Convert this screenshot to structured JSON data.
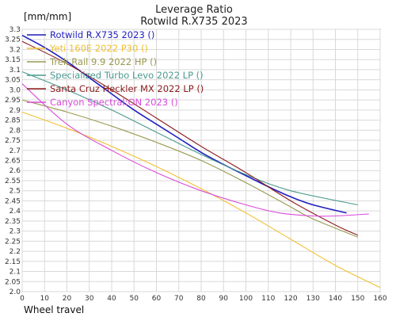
{
  "chart_data": {
    "type": "line",
    "title": "Leverage Ratio",
    "subtitle": "Rotwild R.X735 2023",
    "ylabel": "[mm/mm]",
    "xlabel": "Wheel travel",
    "xlim": [
      0,
      160
    ],
    "ylim": [
      2.0,
      3.3
    ],
    "x_ticks": [
      0,
      10,
      20,
      30,
      40,
      50,
      60,
      70,
      80,
      90,
      100,
      110,
      120,
      130,
      140,
      150,
      160
    ],
    "y_ticks": [
      2.0,
      2.05,
      2.1,
      2.15,
      2.2,
      2.25,
      2.3,
      2.35,
      2.4,
      2.45,
      2.5,
      2.55,
      2.6,
      2.65,
      2.7,
      2.75,
      2.8,
      2.85,
      2.9,
      2.95,
      3.0,
      3.05,
      3.1,
      3.15,
      3.2,
      3.25,
      3.3
    ],
    "grid": true,
    "legend_position": "top-left",
    "series": [
      {
        "name": "Rotwild R.X735 2023 ()",
        "color": "#1f1fbf",
        "x": [
          0,
          10,
          20,
          30,
          40,
          50,
          60,
          70,
          80,
          90,
          100,
          110,
          120,
          130,
          145
        ],
        "y": [
          3.27,
          3.21,
          3.14,
          3.06,
          2.98,
          2.9,
          2.83,
          2.76,
          2.69,
          2.63,
          2.575,
          2.52,
          2.47,
          2.43,
          2.39
        ]
      },
      {
        "name": "Yeti 160E 2022 P30 ()",
        "color": "#f0c030",
        "x": [
          0,
          20,
          40,
          60,
          80,
          100,
          120,
          140,
          160
        ],
        "y": [
          2.89,
          2.81,
          2.72,
          2.62,
          2.51,
          2.39,
          2.26,
          2.13,
          2.02
        ]
      },
      {
        "name": "Trek Rail 9.9 2022 HP ()",
        "color": "#9a9a50",
        "x": [
          0,
          20,
          40,
          60,
          80,
          100,
          120,
          130,
          150
        ],
        "y": [
          2.95,
          2.89,
          2.82,
          2.74,
          2.65,
          2.54,
          2.42,
          2.36,
          2.27
        ]
      },
      {
        "name": "Specialized Turbo Levo 2022 LP ()",
        "color": "#4a9a8e",
        "x": [
          0,
          20,
          40,
          60,
          80,
          100,
          120,
          150
        ],
        "y": [
          3.09,
          3.0,
          2.9,
          2.79,
          2.68,
          2.58,
          2.5,
          2.43
        ]
      },
      {
        "name": "Santa Cruz Heckler MX 2022 LP ()",
        "color": "#8b1a1a",
        "x": [
          0,
          20,
          40,
          60,
          80,
          100,
          120,
          140,
          150
        ],
        "y": [
          3.24,
          3.13,
          3.0,
          2.86,
          2.72,
          2.59,
          2.45,
          2.33,
          2.28
        ]
      },
      {
        "name": "Canyon Spectral:ON 2023 ()",
        "color": "#d94bd9",
        "x": [
          0,
          20,
          40,
          60,
          80,
          100,
          115,
          130,
          140,
          155
        ],
        "y": [
          3.03,
          2.83,
          2.7,
          2.59,
          2.5,
          2.43,
          2.39,
          2.375,
          2.375,
          2.385
        ]
      }
    ]
  }
}
